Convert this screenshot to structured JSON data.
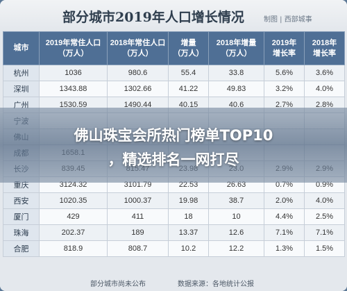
{
  "header": {
    "title": "部分城市2019年人口增长情况",
    "credit": "制图 | 西部城事"
  },
  "table": {
    "columns": [
      {
        "line1": "城市",
        "line2": ""
      },
      {
        "line1": "2019年常住人口",
        "line2": "（万人）"
      },
      {
        "line1": "2018年常住人口",
        "line2": "（万人）"
      },
      {
        "line1": "增量",
        "line2": "（万人）"
      },
      {
        "line1": "2018年增量",
        "line2": "（万人）"
      },
      {
        "line1": "2019年",
        "line2": "增长率"
      },
      {
        "line1": "2018年",
        "line2": "增长率"
      }
    ],
    "rows": [
      [
        "杭州",
        "1036",
        "980.6",
        "55.4",
        "33.8",
        "5.6%",
        "3.6%"
      ],
      [
        "深圳",
        "1343.88",
        "1302.66",
        "41.22",
        "49.83",
        "3.2%",
        "4.0%"
      ],
      [
        "广州",
        "1530.59",
        "1490.44",
        "40.15",
        "40.6",
        "2.7%",
        "2.8%"
      ],
      [
        "宁波",
        "",
        "",
        "",
        "",
        "",
        ""
      ],
      [
        "佛山",
        "",
        "",
        "",
        "",
        "",
        ""
      ],
      [
        "成都",
        "1658.1",
        "",
        "",
        "",
        "",
        ""
      ],
      [
        "长沙",
        "839.45",
        "815.47",
        "23.98",
        "23.0",
        "2.9%",
        "2.9%"
      ],
      [
        "重庆",
        "3124.32",
        "3101.79",
        "22.53",
        "26.63",
        "0.7%",
        "0.9%"
      ],
      [
        "西安",
        "1020.35",
        "1000.37",
        "19.98",
        "38.7",
        "2.0%",
        "4.0%"
      ],
      [
        "厦门",
        "429",
        "411",
        "18",
        "10",
        "4.4%",
        "2.5%"
      ],
      [
        "珠海",
        "202.37",
        "189",
        "13.37",
        "12.6",
        "7.1%",
        "7.1%"
      ],
      [
        "合肥",
        "818.9",
        "808.7",
        "10.2",
        "12.2",
        "1.3%",
        "1.5%"
      ]
    ]
  },
  "footer": {
    "note": "部分城市尚未公布",
    "source": "数据来源：各地统计公报"
  },
  "overlay": {
    "line1": "佛山珠宝会所热门榜单TOP10",
    "line2": "，精选排名一网打尽"
  }
}
